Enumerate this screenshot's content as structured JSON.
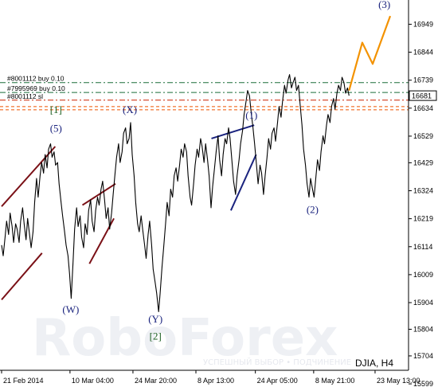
{
  "chart_data": {
    "type": "line",
    "symbol": "DJIA, H4",
    "watermark": "RoboForex",
    "watermark_sub": "УСПЕШНЫЙ ВЫБОР • ПОДЧИНЕНИЕ",
    "ylim": [
      15650,
      17040
    ],
    "yticks": [
      16949,
      16844,
      16739,
      16634,
      16529,
      16429,
      16324,
      16219,
      16114,
      16009,
      15904,
      15804,
      15704,
      15599
    ],
    "xticks": [
      {
        "label": "21 Feb 2014",
        "t": 0
      },
      {
        "label": "10 Mar 04:00",
        "t": 0.176
      },
      {
        "label": "24 Mar 20:00",
        "t": 0.338
      },
      {
        "label": "8 Apr 13:00",
        "t": 0.5
      },
      {
        "label": "24 Apr 05:00",
        "t": 0.653
      },
      {
        "label": "8 May 21:00",
        "t": 0.803
      },
      {
        "label": "23 May 13:00",
        "t": 0.961
      }
    ],
    "current_price": "16681",
    "price_series": [
      {
        "t": 0.0,
        "v": 16120
      },
      {
        "t": 0.004,
        "v": 16080
      },
      {
        "t": 0.009,
        "v": 16150
      },
      {
        "t": 0.013,
        "v": 16210
      },
      {
        "t": 0.018,
        "v": 16160
      },
      {
        "t": 0.022,
        "v": 16240
      },
      {
        "t": 0.027,
        "v": 16190
      },
      {
        "t": 0.031,
        "v": 16130
      },
      {
        "t": 0.036,
        "v": 16200
      },
      {
        "t": 0.04,
        "v": 16180
      },
      {
        "t": 0.045,
        "v": 16130
      },
      {
        "t": 0.049,
        "v": 16210
      },
      {
        "t": 0.054,
        "v": 16260
      },
      {
        "t": 0.058,
        "v": 16200
      },
      {
        "t": 0.063,
        "v": 16140
      },
      {
        "t": 0.067,
        "v": 16220
      },
      {
        "t": 0.072,
        "v": 16160
      },
      {
        "t": 0.076,
        "v": 16110
      },
      {
        "t": 0.081,
        "v": 16170
      },
      {
        "t": 0.085,
        "v": 16280
      },
      {
        "t": 0.09,
        "v": 16370
      },
      {
        "t": 0.094,
        "v": 16300
      },
      {
        "t": 0.099,
        "v": 16380
      },
      {
        "t": 0.103,
        "v": 16430
      },
      {
        "t": 0.108,
        "v": 16390
      },
      {
        "t": 0.112,
        "v": 16460
      },
      {
        "t": 0.117,
        "v": 16410
      },
      {
        "t": 0.121,
        "v": 16480
      },
      {
        "t": 0.126,
        "v": 16500
      },
      {
        "t": 0.13,
        "v": 16450
      },
      {
        "t": 0.135,
        "v": 16470
      },
      {
        "t": 0.139,
        "v": 16420
      },
      {
        "t": 0.144,
        "v": 16430
      },
      {
        "t": 0.148,
        "v": 16350
      },
      {
        "t": 0.153,
        "v": 16280
      },
      {
        "t": 0.157,
        "v": 16230
      },
      {
        "t": 0.162,
        "v": 16170
      },
      {
        "t": 0.166,
        "v": 16120
      },
      {
        "t": 0.171,
        "v": 16080
      },
      {
        "t": 0.175,
        "v": 16010
      },
      {
        "t": 0.179,
        "v": 15920
      },
      {
        "t": 0.184,
        "v": 16060
      },
      {
        "t": 0.188,
        "v": 16180
      },
      {
        "t": 0.193,
        "v": 16260
      },
      {
        "t": 0.197,
        "v": 16190
      },
      {
        "t": 0.202,
        "v": 16230
      },
      {
        "t": 0.206,
        "v": 16150
      },
      {
        "t": 0.211,
        "v": 16110
      },
      {
        "t": 0.215,
        "v": 16200
      },
      {
        "t": 0.22,
        "v": 16160
      },
      {
        "t": 0.224,
        "v": 16250
      },
      {
        "t": 0.229,
        "v": 16290
      },
      {
        "t": 0.233,
        "v": 16210
      },
      {
        "t": 0.238,
        "v": 16170
      },
      {
        "t": 0.242,
        "v": 16250
      },
      {
        "t": 0.247,
        "v": 16300
      },
      {
        "t": 0.251,
        "v": 16270
      },
      {
        "t": 0.256,
        "v": 16330
      },
      {
        "t": 0.26,
        "v": 16360
      },
      {
        "t": 0.265,
        "v": 16290
      },
      {
        "t": 0.269,
        "v": 16220
      },
      {
        "t": 0.274,
        "v": 16260
      },
      {
        "t": 0.278,
        "v": 16180
      },
      {
        "t": 0.283,
        "v": 16240
      },
      {
        "t": 0.287,
        "v": 16310
      },
      {
        "t": 0.292,
        "v": 16390
      },
      {
        "t": 0.296,
        "v": 16450
      },
      {
        "t": 0.301,
        "v": 16500
      },
      {
        "t": 0.305,
        "v": 16430
      },
      {
        "t": 0.31,
        "v": 16470
      },
      {
        "t": 0.314,
        "v": 16540
      },
      {
        "t": 0.319,
        "v": 16560
      },
      {
        "t": 0.323,
        "v": 16500
      },
      {
        "t": 0.328,
        "v": 16520
      },
      {
        "t": 0.332,
        "v": 16580
      },
      {
        "t": 0.336,
        "v": 16460
      },
      {
        "t": 0.341,
        "v": 16380
      },
      {
        "t": 0.345,
        "v": 16280
      },
      {
        "t": 0.35,
        "v": 16200
      },
      {
        "t": 0.354,
        "v": 16170
      },
      {
        "t": 0.359,
        "v": 16230
      },
      {
        "t": 0.363,
        "v": 16180
      },
      {
        "t": 0.368,
        "v": 16120
      },
      {
        "t": 0.372,
        "v": 16070
      },
      {
        "t": 0.377,
        "v": 16160
      },
      {
        "t": 0.381,
        "v": 16210
      },
      {
        "t": 0.386,
        "v": 16120
      },
      {
        "t": 0.39,
        "v": 16030
      },
      {
        "t": 0.395,
        "v": 15980
      },
      {
        "t": 0.399,
        "v": 15940
      },
      {
        "t": 0.404,
        "v": 15870
      },
      {
        "t": 0.408,
        "v": 15940
      },
      {
        "t": 0.413,
        "v": 16040
      },
      {
        "t": 0.417,
        "v": 16110
      },
      {
        "t": 0.422,
        "v": 16200
      },
      {
        "t": 0.426,
        "v": 16280
      },
      {
        "t": 0.431,
        "v": 16230
      },
      {
        "t": 0.435,
        "v": 16330
      },
      {
        "t": 0.44,
        "v": 16300
      },
      {
        "t": 0.444,
        "v": 16380
      },
      {
        "t": 0.449,
        "v": 16410
      },
      {
        "t": 0.453,
        "v": 16360
      },
      {
        "t": 0.458,
        "v": 16420
      },
      {
        "t": 0.462,
        "v": 16480
      },
      {
        "t": 0.467,
        "v": 16450
      },
      {
        "t": 0.471,
        "v": 16500
      },
      {
        "t": 0.476,
        "v": 16470
      },
      {
        "t": 0.48,
        "v": 16380
      },
      {
        "t": 0.485,
        "v": 16300
      },
      {
        "t": 0.489,
        "v": 16270
      },
      {
        "t": 0.494,
        "v": 16350
      },
      {
        "t": 0.498,
        "v": 16420
      },
      {
        "t": 0.503,
        "v": 16480
      },
      {
        "t": 0.507,
        "v": 16450
      },
      {
        "t": 0.512,
        "v": 16520
      },
      {
        "t": 0.516,
        "v": 16490
      },
      {
        "t": 0.521,
        "v": 16430
      },
      {
        "t": 0.525,
        "v": 16500
      },
      {
        "t": 0.53,
        "v": 16440
      },
      {
        "t": 0.534,
        "v": 16380
      },
      {
        "t": 0.539,
        "v": 16260
      },
      {
        "t": 0.543,
        "v": 16340
      },
      {
        "t": 0.548,
        "v": 16410
      },
      {
        "t": 0.552,
        "v": 16470
      },
      {
        "t": 0.557,
        "v": 16530
      },
      {
        "t": 0.561,
        "v": 16440
      },
      {
        "t": 0.566,
        "v": 16380
      },
      {
        "t": 0.57,
        "v": 16460
      },
      {
        "t": 0.575,
        "v": 16520
      },
      {
        "t": 0.579,
        "v": 16500
      },
      {
        "t": 0.584,
        "v": 16560
      },
      {
        "t": 0.588,
        "v": 16520
      },
      {
        "t": 0.593,
        "v": 16430
      },
      {
        "t": 0.597,
        "v": 16360
      },
      {
        "t": 0.602,
        "v": 16310
      },
      {
        "t": 0.606,
        "v": 16380
      },
      {
        "t": 0.611,
        "v": 16440
      },
      {
        "t": 0.615,
        "v": 16500
      },
      {
        "t": 0.62,
        "v": 16550
      },
      {
        "t": 0.624,
        "v": 16610
      },
      {
        "t": 0.629,
        "v": 16660
      },
      {
        "t": 0.633,
        "v": 16700
      },
      {
        "t": 0.638,
        "v": 16680
      },
      {
        "t": 0.642,
        "v": 16620
      },
      {
        "t": 0.647,
        "v": 16560
      },
      {
        "t": 0.651,
        "v": 16500
      },
      {
        "t": 0.656,
        "v": 16420
      },
      {
        "t": 0.66,
        "v": 16350
      },
      {
        "t": 0.665,
        "v": 16420
      },
      {
        "t": 0.669,
        "v": 16390
      },
      {
        "t": 0.674,
        "v": 16310
      },
      {
        "t": 0.678,
        "v": 16380
      },
      {
        "t": 0.683,
        "v": 16450
      },
      {
        "t": 0.687,
        "v": 16520
      },
      {
        "t": 0.692,
        "v": 16480
      },
      {
        "t": 0.696,
        "v": 16540
      },
      {
        "t": 0.701,
        "v": 16560
      },
      {
        "t": 0.705,
        "v": 16510
      },
      {
        "t": 0.71,
        "v": 16580
      },
      {
        "t": 0.714,
        "v": 16640
      },
      {
        "t": 0.719,
        "v": 16600
      },
      {
        "t": 0.723,
        "v": 16660
      },
      {
        "t": 0.728,
        "v": 16720
      },
      {
        "t": 0.732,
        "v": 16690
      },
      {
        "t": 0.737,
        "v": 16740
      },
      {
        "t": 0.741,
        "v": 16760
      },
      {
        "t": 0.746,
        "v": 16710
      },
      {
        "t": 0.75,
        "v": 16730
      },
      {
        "t": 0.755,
        "v": 16750
      },
      {
        "t": 0.759,
        "v": 16700
      },
      {
        "t": 0.764,
        "v": 16720
      },
      {
        "t": 0.768,
        "v": 16650
      },
      {
        "t": 0.773,
        "v": 16570
      },
      {
        "t": 0.777,
        "v": 16480
      },
      {
        "t": 0.782,
        "v": 16420
      },
      {
        "t": 0.786,
        "v": 16350
      },
      {
        "t": 0.791,
        "v": 16300
      },
      {
        "t": 0.795,
        "v": 16370
      },
      {
        "t": 0.8,
        "v": 16330
      },
      {
        "t": 0.804,
        "v": 16300
      },
      {
        "t": 0.809,
        "v": 16380
      },
      {
        "t": 0.813,
        "v": 16440
      },
      {
        "t": 0.818,
        "v": 16400
      },
      {
        "t": 0.822,
        "v": 16470
      },
      {
        "t": 0.827,
        "v": 16530
      },
      {
        "t": 0.831,
        "v": 16500
      },
      {
        "t": 0.836,
        "v": 16570
      },
      {
        "t": 0.84,
        "v": 16610
      },
      {
        "t": 0.845,
        "v": 16580
      },
      {
        "t": 0.849,
        "v": 16640
      },
      {
        "t": 0.854,
        "v": 16670
      },
      {
        "t": 0.858,
        "v": 16630
      },
      {
        "t": 0.863,
        "v": 16690
      },
      {
        "t": 0.867,
        "v": 16720
      },
      {
        "t": 0.872,
        "v": 16700
      },
      {
        "t": 0.876,
        "v": 16750
      },
      {
        "t": 0.881,
        "v": 16730
      },
      {
        "t": 0.885,
        "v": 16690
      },
      {
        "t": 0.89,
        "v": 16710
      },
      {
        "t": 0.894,
        "v": 16681
      }
    ],
    "projection": [
      {
        "t": 0.894,
        "v": 16700
      },
      {
        "t": 0.928,
        "v": 16880
      },
      {
        "t": 0.955,
        "v": 16800
      },
      {
        "t": 1.0,
        "v": 16980
      }
    ],
    "hlines": [
      {
        "label": "#8001112 buy 0.10",
        "v": 16730,
        "color": "#1b6e3a",
        "style": "dashdot"
      },
      {
        "label": "#7995969 buy 0.10",
        "v": 16693,
        "color": "#1b6e3a",
        "style": "dashdot"
      },
      {
        "label": "#8001112 sl",
        "v": 16664,
        "color": "#cc2200",
        "style": "dashdot"
      },
      {
        "label": "",
        "v": 16640,
        "color": "#ee5500",
        "style": "dashed"
      },
      {
        "label": "",
        "v": 16628,
        "color": "#ee5500",
        "style": "dashed"
      }
    ],
    "wave_labels": [
      {
        "text": "[1]",
        "t": 0.14,
        "v": 16615,
        "color": "green"
      },
      {
        "text": "(5)",
        "t": 0.14,
        "v": 16545,
        "color": "navy"
      },
      {
        "text": "(W)",
        "t": 0.178,
        "v": 15865,
        "color": "navy"
      },
      {
        "text": "(X)",
        "t": 0.33,
        "v": 16615,
        "color": "navy"
      },
      {
        "text": "(Y)",
        "t": 0.396,
        "v": 15830,
        "color": "navy"
      },
      {
        "text": "[2]",
        "t": 0.396,
        "v": 15765,
        "color": "green"
      },
      {
        "text": "(1)",
        "t": 0.643,
        "v": 16595,
        "color": "navy"
      },
      {
        "text": "(2)",
        "t": 0.8,
        "v": 16240,
        "color": "navy"
      },
      {
        "text": "(3)",
        "t": 0.985,
        "v": 17010,
        "color": "navy"
      }
    ],
    "channels": [
      {
        "color": "#7a1016",
        "lines": [
          [
            0.0,
            16265,
            0.138,
            16490
          ],
          [
            0.0,
            15915,
            0.104,
            16090
          ]
        ]
      },
      {
        "color": "#7a1016",
        "lines": [
          [
            0.208,
            16270,
            0.293,
            16350
          ],
          [
            0.226,
            16050,
            0.289,
            16220
          ]
        ]
      },
      {
        "color": "#1a237e",
        "lines": [
          [
            0.54,
            16520,
            0.65,
            16570
          ],
          [
            0.59,
            16250,
            0.655,
            16460
          ]
        ]
      }
    ]
  }
}
